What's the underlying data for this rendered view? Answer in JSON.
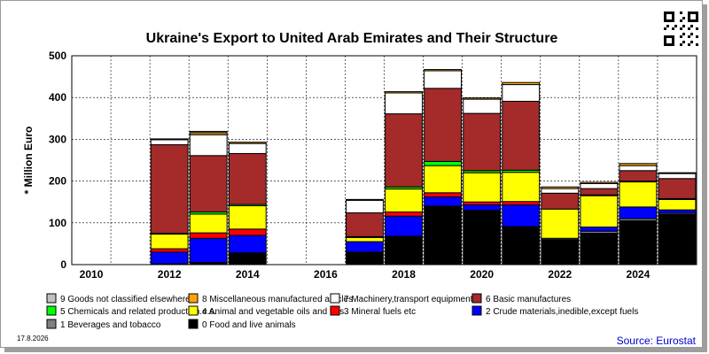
{
  "chart_data": {
    "type": "bar",
    "stacked": true,
    "title": "Ukraine's Export to United Arab Emirates and Their Structure",
    "ylabel": "* Million Euro",
    "ylim": [
      0,
      500
    ],
    "yticks": [
      0,
      100,
      200,
      300,
      400,
      500
    ],
    "xtick_labels": [
      "2010",
      "2012",
      "2014",
      "2016",
      "2018",
      "2020",
      "2022",
      "2024"
    ],
    "categories": [
      "2010",
      "2011",
      "2012",
      "2013",
      "2014",
      "2015",
      "2016",
      "2017",
      "2018",
      "2019",
      "2020",
      "2021",
      "2022",
      "2023",
      "2024",
      "2025"
    ],
    "grid": true,
    "legend_position": "bottom",
    "series": [
      {
        "name": "0 Food and live animals",
        "color": "#000000",
        "values": [
          0,
          0,
          2,
          5,
          28,
          0,
          0,
          30,
          68,
          140,
          130,
          90,
          60,
          75,
          105,
          120
        ]
      },
      {
        "name": "1 Beverages and tobacco",
        "color": "#808080",
        "values": [
          0,
          0,
          0,
          0,
          0,
          0,
          0,
          0,
          0,
          0,
          0,
          1,
          3,
          5,
          5,
          3
        ]
      },
      {
        "name": "2 Crude materials,inedible,except fuels",
        "color": "#0000ff",
        "values": [
          0,
          0,
          28,
          58,
          42,
          0,
          0,
          25,
          48,
          22,
          13,
          52,
          0,
          10,
          28,
          8
        ]
      },
      {
        "name": "3 Mineral fuels etc",
        "color": "#ff0000",
        "values": [
          0,
          0,
          8,
          13,
          15,
          0,
          0,
          0,
          10,
          10,
          7,
          8,
          0,
          0,
          0,
          0
        ]
      },
      {
        "name": "4 Animal and vegetable oils and fats",
        "color": "#ffff00",
        "values": [
          0,
          0,
          35,
          45,
          56,
          0,
          0,
          10,
          55,
          65,
          70,
          70,
          70,
          75,
          60,
          25
        ]
      },
      {
        "name": "5 Chemicals and related products,n.e.s.",
        "color": "#00ff00",
        "values": [
          0,
          0,
          2,
          5,
          3,
          0,
          0,
          2,
          5,
          10,
          5,
          5,
          0,
          2,
          2,
          2
        ]
      },
      {
        "name": "6 Basic manufactures",
        "color": "#a52a2a",
        "values": [
          0,
          0,
          212,
          135,
          122,
          0,
          0,
          57,
          175,
          175,
          137,
          165,
          38,
          15,
          25,
          48
        ]
      },
      {
        "name": "7 Machinery,transport equipment",
        "color": "#ffffff",
        "values": [
          0,
          0,
          12,
          50,
          24,
          0,
          0,
          30,
          50,
          42,
          34,
          40,
          11,
          12,
          12,
          12
        ]
      },
      {
        "name": "8 Miscellaneous manufactured articles",
        "color": "#ffa500",
        "values": [
          0,
          0,
          2,
          5,
          3,
          0,
          0,
          2,
          3,
          3,
          3,
          5,
          4,
          3,
          5,
          2
        ]
      },
      {
        "name": "9 Goods not classified elsewhere",
        "color": "#c0c0c0",
        "values": [
          0,
          0,
          0,
          3,
          0,
          0,
          0,
          0,
          0,
          0,
          0,
          0,
          0,
          0,
          0,
          0
        ]
      }
    ]
  },
  "footer": {
    "date": "17.8.2026",
    "source": "Source: Eurostat"
  },
  "colors": {
    "plot_bg": "#ffffff",
    "grid": "#000000",
    "bar_outline": "#000000"
  },
  "qr_icon": "qr-code-icon"
}
